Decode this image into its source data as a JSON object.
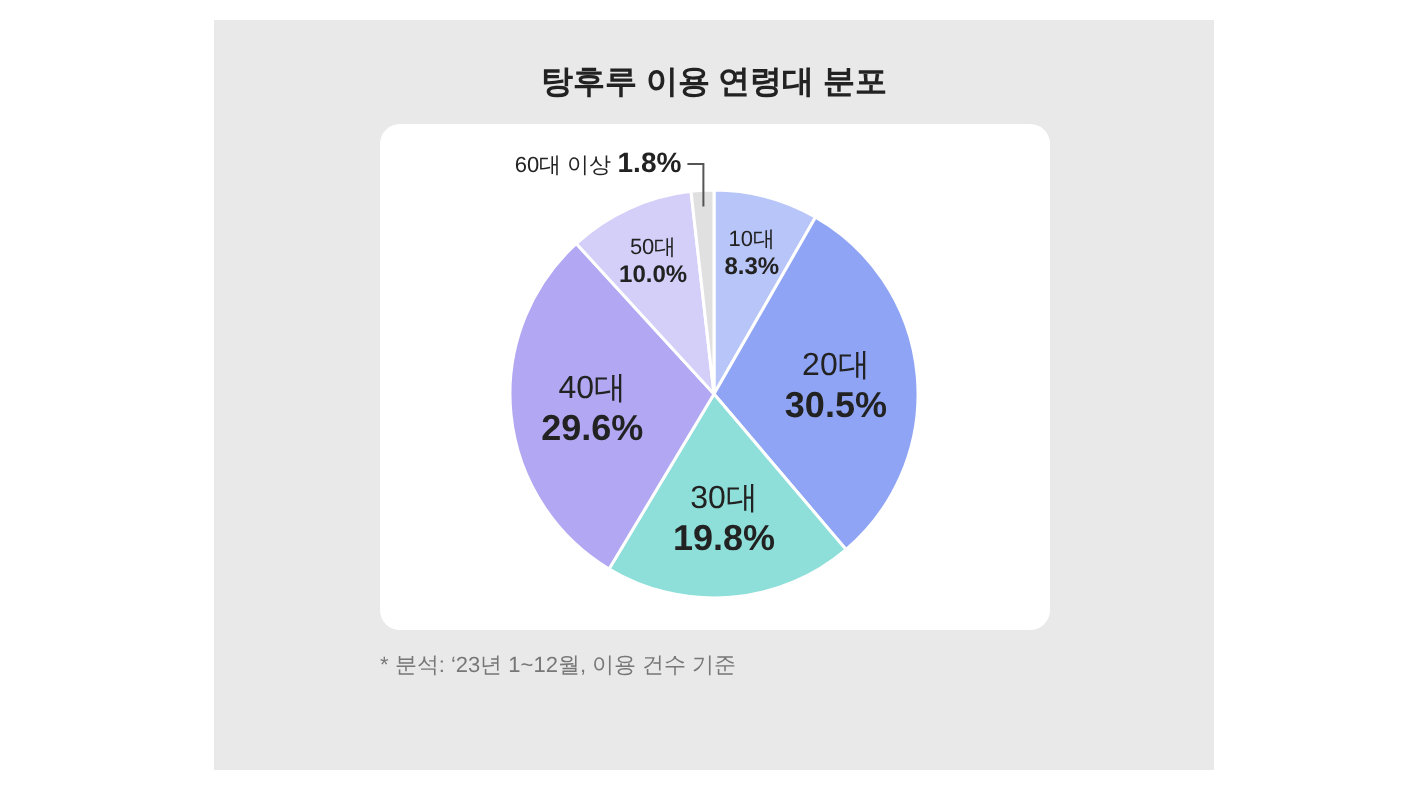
{
  "chart_data": {
    "type": "pie",
    "title": "탕후루 이용 연령대 분포",
    "categories": [
      "10대",
      "20대",
      "30대",
      "40대",
      "50대",
      "60대 이상"
    ],
    "values": [
      8.3,
      30.5,
      19.8,
      29.6,
      10.0,
      1.8
    ],
    "colors": [
      "#b8c5f8",
      "#8fa4f4",
      "#8edfd9",
      "#b2a7f2",
      "#d4cff8",
      "#e0e0e0"
    ],
    "value_labels": [
      "8.3%",
      "30.5%",
      "19.8%",
      "29.6%",
      "10.0%",
      "1.8%"
    ],
    "annotations": [
      "* 분석: ‘23년 1~12월, 이용 건수 기준"
    ]
  }
}
